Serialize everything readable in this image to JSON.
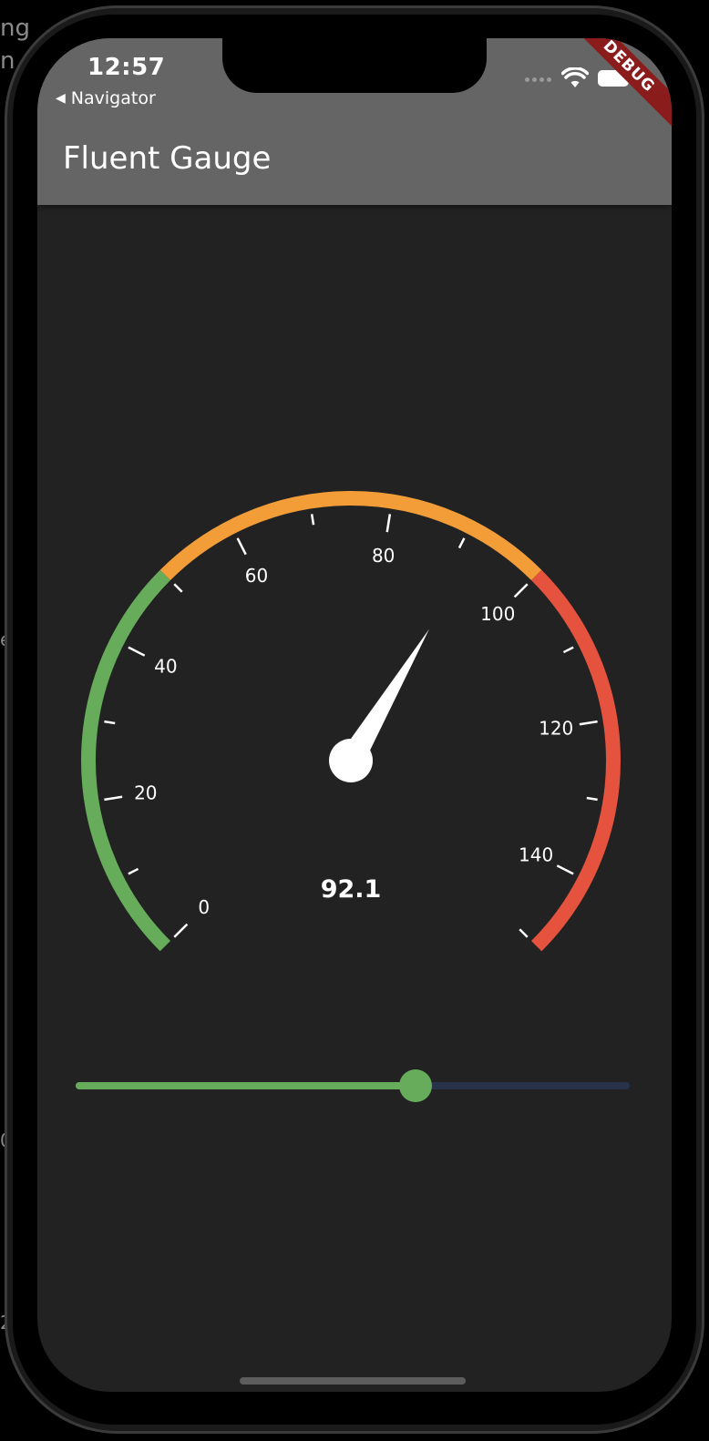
{
  "background_fragments": [
    "ng",
    "nc",
    "e",
    "0",
    "2"
  ],
  "status_bar": {
    "time": "12:57",
    "back_label": "Navigator"
  },
  "debug_banner": "DEBUG",
  "app_bar": {
    "title": "Fluent Gauge"
  },
  "gauge": {
    "min": 0,
    "max": 150,
    "value": 92.1,
    "value_label": "92.1",
    "major_ticks": [
      0,
      20,
      40,
      60,
      80,
      100,
      120,
      140
    ],
    "minor_tick_step": 10,
    "ranges": [
      {
        "from": 0,
        "to": 50,
        "color": "#66ac5b"
      },
      {
        "from": 50,
        "to": 100,
        "color": "#f29d38"
      },
      {
        "from": 100,
        "to": 150,
        "color": "#e5533f"
      }
    ],
    "needle_color": "#ffffff"
  },
  "slider": {
    "value_fraction": 0.614,
    "active_color": "#66ac5b",
    "inactive_color": "#27334a"
  }
}
